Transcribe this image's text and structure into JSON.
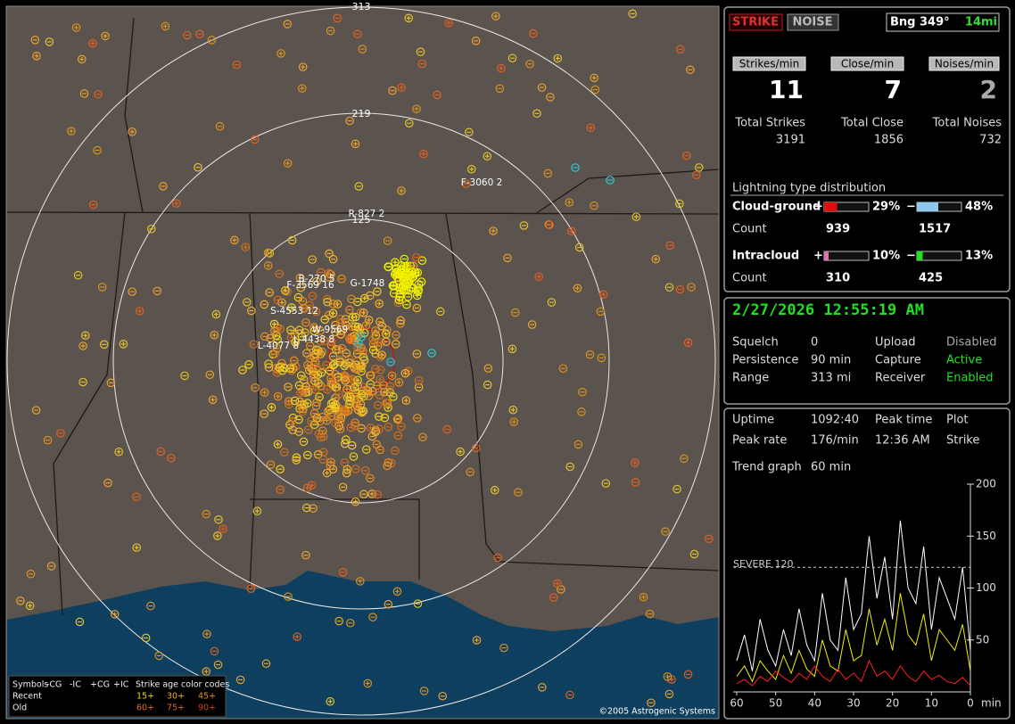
{
  "header": {
    "strike_button": "STRIKE",
    "noise_button": "NOISE",
    "bearing": "Bng 349°",
    "distance": "14mi"
  },
  "rates": [
    {
      "label": "Strikes/min",
      "value": 11
    },
    {
      "label": "Close/min",
      "value": 7
    },
    {
      "label": "Noises/min",
      "value": 2
    }
  ],
  "totals": [
    {
      "label": "Total Strikes",
      "value": 3191
    },
    {
      "label": "Total Close",
      "value": 1856
    },
    {
      "label": "Total Noises",
      "value": 732
    }
  ],
  "distribution": {
    "title": "Lightning type distribution",
    "count_label": "Count",
    "rows": [
      {
        "label": "Cloud-ground",
        "pos": {
          "sign": "+",
          "value": 29,
          "value_label": "29%",
          "count": 939,
          "color": "#e01010"
        },
        "neg": {
          "sign": "−",
          "value": 48,
          "value_label": "48%",
          "count": 1517,
          "color": "#8ec8f0"
        }
      },
      {
        "label": "Intracloud",
        "pos": {
          "sign": "+",
          "value": 10,
          "value_label": "10%",
          "count": 310,
          "color": "#e070b0"
        },
        "neg": {
          "sign": "−",
          "value": 13,
          "value_label": "13%",
          "count": 425,
          "color": "#20e020"
        }
      }
    ]
  },
  "timestamp": "2/27/2026 12:55:19 AM",
  "status": [
    [
      "Squelch",
      "0",
      "Upload",
      "Disabled"
    ],
    [
      "Persistence",
      "90 min",
      "Capture",
      "Active"
    ],
    [
      "Range",
      "313 mi",
      "Receiver",
      "Enabled"
    ]
  ],
  "info": [
    [
      "Uptime",
      "1092:40",
      "Peak time",
      "Plot"
    ],
    [
      "Peak rate",
      "176/min",
      "12:36 AM",
      "Strike"
    ],
    [
      "Trend graph",
      "60 min"
    ]
  ],
  "map": {
    "ring_labels": [
      "313",
      "219",
      "125"
    ],
    "storm_labels": [
      "R-827 2",
      "F-3060 2",
      "G-1748",
      "F-3569 16",
      "B-270 5",
      "S-4553 12",
      "W-9569",
      "L-4438 8",
      "L-4077 8"
    ],
    "legend": {
      "row1": [
        "Symbols",
        "-CG",
        "-IC",
        "+CG",
        "+IC",
        "Strike age color codes"
      ],
      "recent": "Recent",
      "old": "Old",
      "recent_ages": [
        "15+",
        "30+",
        "45+"
      ],
      "old_ages": [
        "60+",
        "75+",
        "90+"
      ]
    },
    "copyright": "©2005 Astrogenic Systems"
  },
  "chart_data": {
    "type": "line",
    "x_label": "min",
    "xlim": [
      60,
      0
    ],
    "xticks": [
      60,
      50,
      40,
      30,
      20,
      10,
      0
    ],
    "ylim": [
      0,
      200
    ],
    "yticks": [
      50,
      100,
      150,
      200
    ],
    "threshold": {
      "value": 120,
      "label": "SEVERE 120"
    },
    "x": [
      60,
      58,
      56,
      54,
      52,
      50,
      48,
      46,
      44,
      42,
      40,
      38,
      36,
      34,
      32,
      30,
      28,
      26,
      24,
      22,
      20,
      18,
      16,
      14,
      12,
      10,
      8,
      6,
      4,
      2,
      0
    ],
    "series": [
      {
        "color": "#ffffff",
        "values": [
          30,
          55,
          20,
          70,
          40,
          25,
          60,
          35,
          80,
          45,
          30,
          95,
          50,
          40,
          110,
          60,
          75,
          150,
          90,
          130,
          70,
          165,
          100,
          85,
          140,
          60,
          110,
          90,
          70,
          120,
          40
        ]
      },
      {
        "color": "#f0f000",
        "values": [
          15,
          25,
          10,
          30,
          20,
          12,
          35,
          18,
          40,
          22,
          15,
          50,
          25,
          20,
          60,
          30,
          35,
          80,
          45,
          70,
          40,
          95,
          55,
          45,
          75,
          30,
          60,
          50,
          40,
          65,
          20
        ]
      },
      {
        "color": "#ff2020",
        "values": [
          8,
          12,
          6,
          15,
          10,
          20,
          14,
          9,
          18,
          12,
          25,
          15,
          10,
          22,
          12,
          18,
          10,
          30,
          15,
          20,
          12,
          25,
          15,
          10,
          20,
          12,
          16,
          10,
          8,
          14,
          6
        ]
      }
    ]
  }
}
